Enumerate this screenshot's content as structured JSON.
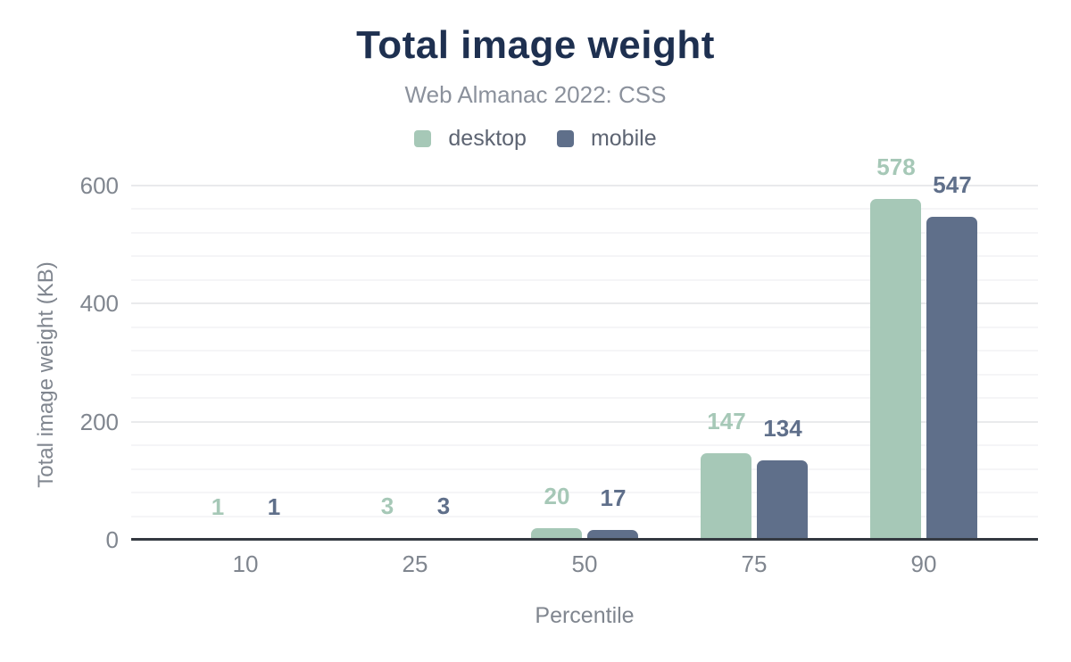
{
  "chart_data": {
    "type": "bar",
    "title": "Total image weight",
    "subtitle": "Web Almanac 2022: CSS",
    "xlabel": "Percentile",
    "ylabel": "Total image weight (KB)",
    "categories": [
      "10",
      "25",
      "50",
      "75",
      "90"
    ],
    "series": [
      {
        "name": "desktop",
        "color": "#a6c8b7",
        "values": [
          1,
          3,
          20,
          147,
          578
        ]
      },
      {
        "name": "mobile",
        "color": "#5f6f8a",
        "values": [
          1,
          3,
          17,
          134,
          547
        ]
      }
    ],
    "ylim": [
      0,
      600
    ],
    "yticks": [
      0,
      200,
      400,
      600
    ],
    "minor_grid_step": 40,
    "grid": true,
    "legend_position": "top",
    "bar_labels": true
  },
  "colors": {
    "title": "#1e3050",
    "subtitle": "#8b919c",
    "legend_text": "#5d6472",
    "axis_text": "#80868f",
    "axis_line": "#343941",
    "grid_major": "#e9eaec",
    "grid_minor": "#f5f5f7",
    "background": "#ffffff"
  }
}
